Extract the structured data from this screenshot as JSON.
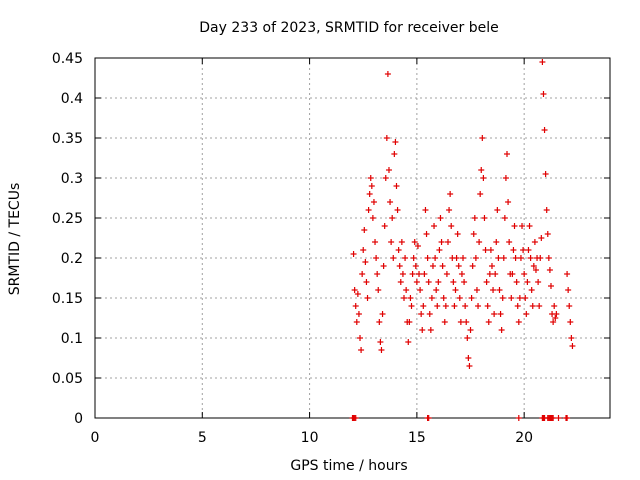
{
  "chart_data": {
    "type": "scatter",
    "title": "Day 233 of 2023, SRMTID for receiver bele",
    "xlabel": "GPS time / hours",
    "ylabel": "SRMTID / TECUs",
    "xlim": [
      0,
      24
    ],
    "ylim": [
      0,
      0.45
    ],
    "xticks": [
      0,
      5,
      10,
      15,
      20
    ],
    "yticks": [
      0,
      0.05,
      0.1,
      0.15,
      0.2,
      0.25,
      0.3,
      0.35,
      0.4,
      0.45
    ],
    "xtick_labels": [
      "0",
      "5",
      "10",
      "15",
      "20"
    ],
    "ytick_labels": [
      "0",
      "0.05",
      "0.1",
      "0.15",
      "0.2",
      "0.25",
      "0.3",
      "0.35",
      "0.4",
      "0.45"
    ],
    "grid": true,
    "marker": "plus",
    "color": "#e00000",
    "series": [
      {
        "name": "SRMTID",
        "points": [
          [
            12.05,
            0.205
          ],
          [
            12.1,
            0.16
          ],
          [
            12.15,
            0.14
          ],
          [
            12.2,
            0.12
          ],
          [
            12.25,
            0.155
          ],
          [
            12.3,
            0.13
          ],
          [
            12.35,
            0.1
          ],
          [
            12.4,
            0.085
          ],
          [
            12.45,
            0.18
          ],
          [
            12.5,
            0.21
          ],
          [
            12.55,
            0.235
          ],
          [
            12.6,
            0.195
          ],
          [
            12.65,
            0.17
          ],
          [
            12.7,
            0.15
          ],
          [
            12.75,
            0.26
          ],
          [
            12.8,
            0.28
          ],
          [
            12.85,
            0.3
          ],
          [
            12.9,
            0.29
          ],
          [
            12.95,
            0.25
          ],
          [
            13.0,
            0.27
          ],
          [
            13.05,
            0.22
          ],
          [
            13.1,
            0.2
          ],
          [
            13.15,
            0.18
          ],
          [
            13.2,
            0.16
          ],
          [
            13.25,
            0.12
          ],
          [
            13.3,
            0.095
          ],
          [
            13.35,
            0.085
          ],
          [
            13.4,
            0.13
          ],
          [
            13.45,
            0.19
          ],
          [
            13.5,
            0.24
          ],
          [
            13.55,
            0.3
          ],
          [
            13.6,
            0.35
          ],
          [
            13.65,
            0.43
          ],
          [
            13.7,
            0.31
          ],
          [
            13.75,
            0.27
          ],
          [
            13.8,
            0.22
          ],
          [
            13.85,
            0.25
          ],
          [
            13.9,
            0.2
          ],
          [
            13.95,
            0.33
          ],
          [
            14.0,
            0.345
          ],
          [
            14.05,
            0.29
          ],
          [
            14.1,
            0.26
          ],
          [
            14.15,
            0.21
          ],
          [
            14.2,
            0.19
          ],
          [
            14.25,
            0.17
          ],
          [
            14.3,
            0.22
          ],
          [
            14.35,
            0.18
          ],
          [
            14.4,
            0.15
          ],
          [
            14.45,
            0.2
          ],
          [
            14.5,
            0.16
          ],
          [
            14.55,
            0.12
          ],
          [
            14.6,
            0.095
          ],
          [
            14.65,
            0.12
          ],
          [
            14.7,
            0.15
          ],
          [
            14.75,
            0.14
          ],
          [
            14.8,
            0.18
          ],
          [
            14.85,
            0.2
          ],
          [
            14.9,
            0.22
          ],
          [
            14.95,
            0.19
          ],
          [
            15.0,
            0.17
          ],
          [
            15.05,
            0.215
          ],
          [
            15.1,
            0.18
          ],
          [
            15.15,
            0.16
          ],
          [
            15.2,
            0.13
          ],
          [
            15.25,
            0.11
          ],
          [
            15.3,
            0.14
          ],
          [
            15.35,
            0.18
          ],
          [
            15.4,
            0.26
          ],
          [
            15.45,
            0.23
          ],
          [
            15.5,
            0.2
          ],
          [
            15.55,
            0.17
          ],
          [
            15.6,
            0.13
          ],
          [
            15.65,
            0.11
          ],
          [
            15.7,
            0.15
          ],
          [
            15.75,
            0.19
          ],
          [
            15.8,
            0.24
          ],
          [
            15.85,
            0.2
          ],
          [
            15.9,
            0.16
          ],
          [
            15.95,
            0.14
          ],
          [
            16.0,
            0.17
          ],
          [
            16.05,
            0.21
          ],
          [
            16.1,
            0.25
          ],
          [
            16.15,
            0.22
          ],
          [
            16.2,
            0.19
          ],
          [
            16.25,
            0.15
          ],
          [
            16.3,
            0.12
          ],
          [
            16.35,
            0.14
          ],
          [
            16.4,
            0.18
          ],
          [
            16.45,
            0.22
          ],
          [
            16.5,
            0.26
          ],
          [
            16.55,
            0.28
          ],
          [
            16.6,
            0.24
          ],
          [
            16.65,
            0.2
          ],
          [
            16.7,
            0.17
          ],
          [
            16.75,
            0.14
          ],
          [
            16.8,
            0.16
          ],
          [
            16.85,
            0.2
          ],
          [
            16.9,
            0.23
          ],
          [
            16.95,
            0.19
          ],
          [
            17.0,
            0.15
          ],
          [
            17.05,
            0.12
          ],
          [
            17.1,
            0.18
          ],
          [
            17.15,
            0.2
          ],
          [
            17.2,
            0.17
          ],
          [
            17.25,
            0.14
          ],
          [
            17.3,
            0.12
          ],
          [
            17.35,
            0.1
          ],
          [
            17.4,
            0.075
          ],
          [
            17.45,
            0.065
          ],
          [
            17.5,
            0.11
          ],
          [
            17.55,
            0.15
          ],
          [
            17.6,
            0.19
          ],
          [
            17.65,
            0.23
          ],
          [
            17.7,
            0.25
          ],
          [
            17.75,
            0.2
          ],
          [
            17.8,
            0.16
          ],
          [
            17.85,
            0.14
          ],
          [
            17.9,
            0.22
          ],
          [
            17.95,
            0.28
          ],
          [
            18.0,
            0.31
          ],
          [
            18.05,
            0.35
          ],
          [
            18.1,
            0.3
          ],
          [
            18.15,
            0.25
          ],
          [
            18.2,
            0.21
          ],
          [
            18.25,
            0.17
          ],
          [
            18.3,
            0.14
          ],
          [
            18.35,
            0.12
          ],
          [
            18.4,
            0.18
          ],
          [
            18.45,
            0.21
          ],
          [
            18.5,
            0.19
          ],
          [
            18.55,
            0.16
          ],
          [
            18.6,
            0.13
          ],
          [
            18.65,
            0.18
          ],
          [
            18.7,
            0.22
          ],
          [
            18.75,
            0.26
          ],
          [
            18.8,
            0.2
          ],
          [
            18.85,
            0.16
          ],
          [
            18.9,
            0.13
          ],
          [
            18.95,
            0.11
          ],
          [
            19.0,
            0.15
          ],
          [
            19.05,
            0.2
          ],
          [
            19.1,
            0.25
          ],
          [
            19.15,
            0.3
          ],
          [
            19.2,
            0.33
          ],
          [
            19.25,
            0.27
          ],
          [
            19.3,
            0.22
          ],
          [
            19.35,
            0.18
          ],
          [
            19.4,
            0.15
          ],
          [
            19.45,
            0.18
          ],
          [
            19.5,
            0.21
          ],
          [
            19.55,
            0.24
          ],
          [
            19.6,
            0.2
          ],
          [
            19.65,
            0.17
          ],
          [
            19.7,
            0.14
          ],
          [
            19.75,
            0.12
          ],
          [
            19.8,
            0.15
          ],
          [
            19.85,
            0.2
          ],
          [
            19.9,
            0.24
          ],
          [
            19.95,
            0.21
          ],
          [
            20.0,
            0.18
          ],
          [
            20.05,
            0.15
          ],
          [
            20.1,
            0.13
          ],
          [
            20.15,
            0.17
          ],
          [
            20.2,
            0.21
          ],
          [
            20.25,
            0.24
          ],
          [
            20.3,
            0.2
          ],
          [
            20.35,
            0.16
          ],
          [
            20.4,
            0.14
          ],
          [
            20.45,
            0.19
          ],
          [
            20.5,
            0.22
          ],
          [
            20.55,
            0.185
          ],
          [
            20.6,
            0.2
          ],
          [
            20.65,
            0.17
          ],
          [
            20.7,
            0.14
          ],
          [
            20.75,
            0.2
          ],
          [
            20.8,
            0.225
          ],
          [
            20.85,
            0.445
          ],
          [
            20.9,
            0.405
          ],
          [
            20.95,
            0.36
          ],
          [
            21.0,
            0.305
          ],
          [
            21.05,
            0.26
          ],
          [
            21.1,
            0.23
          ],
          [
            21.15,
            0.2
          ],
          [
            21.2,
            0.185
          ],
          [
            21.25,
            0.165
          ],
          [
            21.3,
            0.13
          ],
          [
            21.35,
            0.12
          ],
          [
            21.4,
            0.14
          ],
          [
            21.45,
            0.125
          ],
          [
            21.5,
            0.13
          ],
          [
            22.0,
            0.18
          ],
          [
            22.05,
            0.16
          ],
          [
            22.1,
            0.14
          ],
          [
            22.15,
            0.12
          ],
          [
            22.2,
            0.1
          ],
          [
            22.25,
            0.09
          ]
        ]
      }
    ],
    "zero_points_x": [
      12.0,
      12.05,
      12.1,
      12.15,
      15.5,
      15.55,
      19.75,
      20.85,
      20.9,
      20.95,
      21.1,
      21.15,
      21.2,
      21.25,
      21.3,
      21.35,
      21.6,
      21.95,
      22.0
    ]
  }
}
